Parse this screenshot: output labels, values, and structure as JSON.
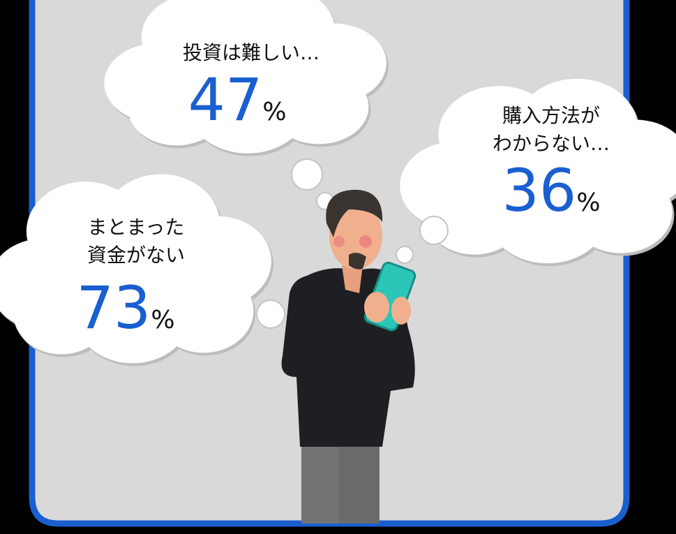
{
  "bubbles": [
    {
      "lines": [
        "投資は難しい…"
      ],
      "value": 47,
      "unit": "%"
    },
    {
      "lines": [
        "購入方法が",
        "わからない…"
      ],
      "value": 36,
      "unit": "%"
    },
    {
      "lines": [
        "まとまった",
        "資金がない"
      ],
      "value": 73,
      "unit": "%"
    }
  ]
}
